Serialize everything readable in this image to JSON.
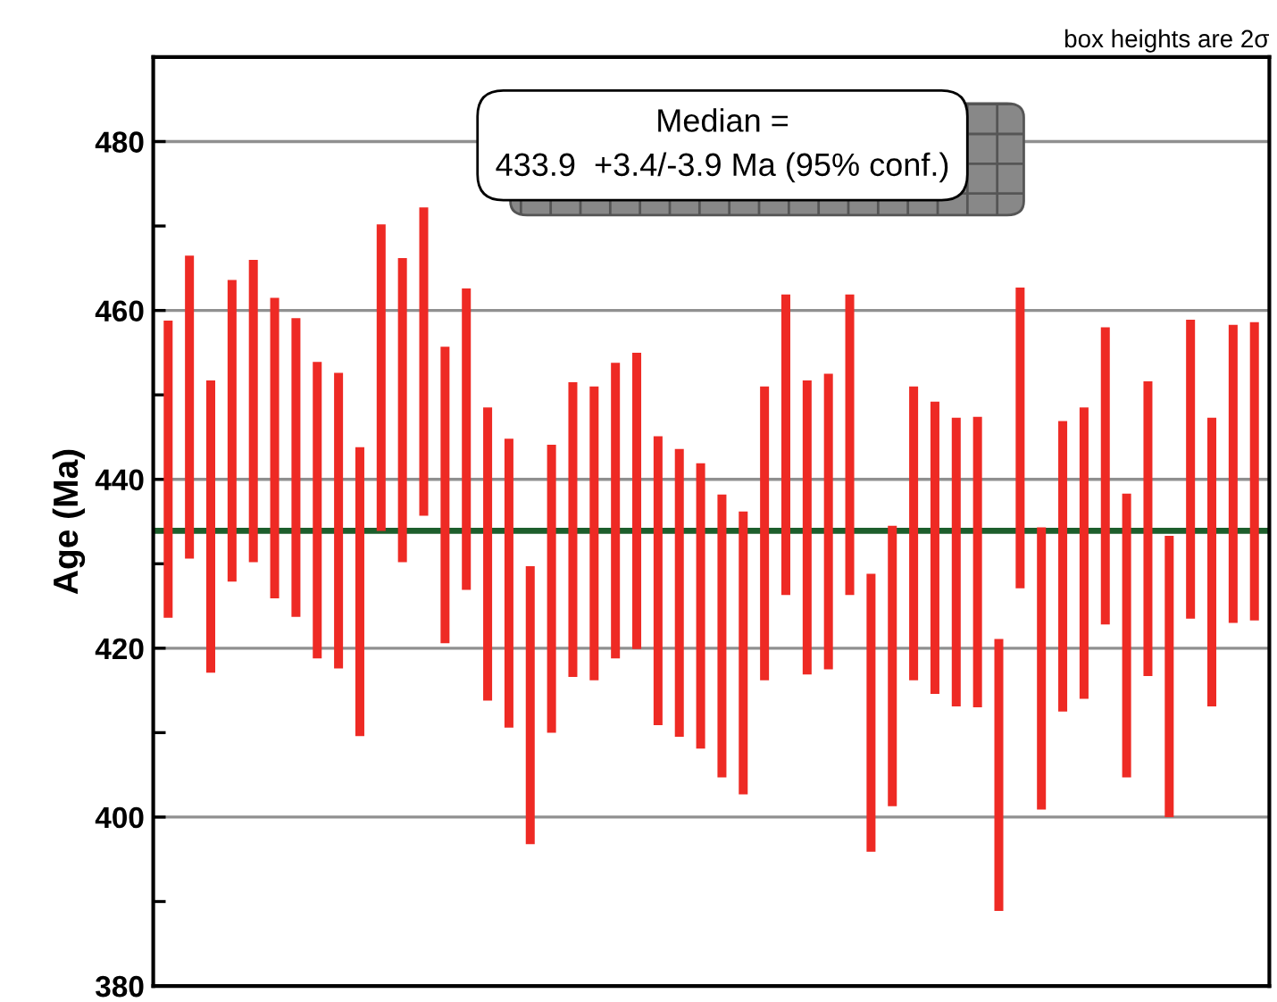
{
  "chart_data": {
    "type": "bar",
    "ylabel": "Age (Ma)",
    "categories": [
      null,
      null,
      null,
      null,
      null,
      null,
      null,
      null,
      null,
      null,
      null,
      null,
      null,
      null,
      null,
      null,
      null,
      null,
      null,
      null,
      null,
      null,
      null,
      null,
      null,
      null,
      null,
      null,
      null,
      null,
      null,
      null,
      null,
      null,
      null,
      null,
      null,
      null,
      null,
      null,
      null,
      null,
      null,
      null,
      null,
      null,
      null,
      null,
      null,
      null,
      null,
      null
    ],
    "base": [
      423.6,
      430.6,
      417.1,
      427.9,
      430.2,
      425.9,
      423.7,
      418.8,
      417.6,
      409.6,
      433.9,
      430.2,
      435.7,
      420.6,
      426.9,
      413.8,
      410.6,
      396.8,
      410.0,
      416.6,
      416.2,
      418.8,
      419.9,
      410.9,
      409.5,
      408.1,
      404.7,
      402.7,
      416.2,
      426.3,
      416.9,
      417.5,
      426.3,
      395.9,
      401.3,
      416.2,
      414.6,
      413.1,
      413.0,
      388.9,
      427.1,
      400.9,
      412.5,
      414.0,
      422.8,
      404.7,
      416.7,
      400.0,
      423.5,
      413.1,
      423.0,
      423.3
    ],
    "values": [
      35.2,
      35.9,
      34.6,
      35.7,
      35.8,
      35.6,
      35.4,
      35.1,
      35.0,
      34.2,
      36.3,
      36.0,
      36.5,
      35.1,
      35.7,
      34.7,
      34.2,
      32.9,
      34.1,
      34.9,
      34.8,
      35.0,
      35.1,
      34.2,
      34.1,
      33.8,
      33.5,
      33.5,
      34.8,
      35.6,
      34.8,
      35.0,
      35.6,
      32.9,
      33.2,
      34.8,
      34.6,
      34.2,
      34.4,
      32.2,
      35.6,
      33.4,
      34.4,
      34.5,
      35.2,
      33.6,
      34.9,
      33.3,
      35.4,
      34.2,
      35.3,
      35.3
    ],
    "color": "#ee2a24",
    "ylim": [
      380,
      490
    ],
    "yticks": [
      380,
      {
        "value": 390,
        "label": null
      },
      400,
      {
        "value": 410,
        "label": null
      },
      420,
      {
        "value": 430,
        "label": null
      },
      440,
      {
        "value": 450,
        "label": null
      },
      460,
      {
        "value": 470,
        "label": null
      },
      480
    ],
    "grid": "y",
    "ref_lines": [
      {
        "axis": "y",
        "value": 433.9,
        "label": null,
        "color": "#1d5e2c"
      }
    ],
    "annotations": [
      "box heights are 2σ",
      "Median =\n433.9  +3.4/-3.9 Ma (95% conf.)"
    ]
  }
}
